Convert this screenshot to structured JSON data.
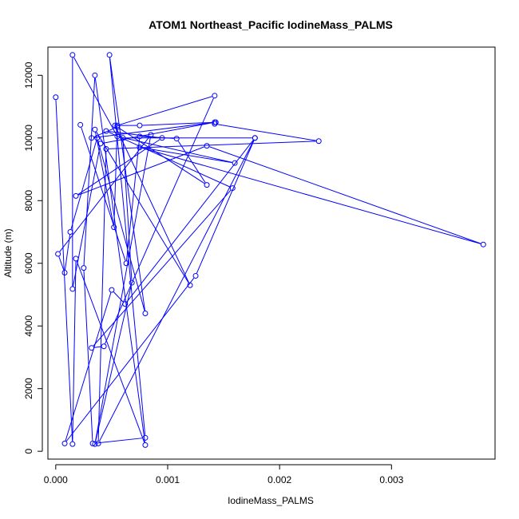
{
  "chart_data": {
    "type": "line",
    "title": "ATOM1 Northeast_Pacific IodineMass_PALMS",
    "xlabel": "IodineMass_PALMS",
    "ylabel": "Altitude (m)",
    "xlim": [
      -7e-05,
      0.003925
    ],
    "ylim": [
      -250,
      12900
    ],
    "xticks": [
      0.0,
      0.001,
      0.002,
      0.003
    ],
    "xtick_labels": [
      "0.000",
      "0.001",
      "0.002",
      "0.003"
    ],
    "yticks": [
      0,
      2000,
      4000,
      6000,
      8000,
      10000,
      12000
    ],
    "ytick_labels": [
      "0",
      "2000",
      "4000",
      "6000",
      "8000",
      "10000",
      "12000"
    ],
    "grid": false,
    "marker": "open-circle",
    "line_color": "#0000ff",
    "series": [
      {
        "x": [
          0.0,
          0.00015,
          0.00018,
          0.0008,
          0.00035,
          0.00025,
          0.00033,
          0.0008,
          0.00048,
          0.0008,
          0.00037,
          0.00013,
          8e-05,
          2e-05,
          0.00085,
          0.00035,
          0.00068,
          0.0006,
          0.00178,
          0.00125,
          8e-05,
          0.0005,
          0.00062,
          0.00178,
          0.00038,
          0.00045,
          0.00235,
          0.00142,
          0.00143,
          0.00075,
          0.00053,
          0.0012,
          0.00035,
          0.00052,
          0.00055,
          0.00142,
          0.00043,
          0.00032,
          0.00158,
          0.00045,
          0.00095,
          0.00018,
          0.00135,
          0.00382,
          0.00075,
          0.0016,
          0.00055,
          0.00015,
          0.00015,
          0.0004,
          0.00142,
          0.00032,
          0.00055,
          0.00135,
          0.00108,
          0.00075,
          0.00063,
          0.00022
        ],
        "y": [
          11300,
          230,
          6150,
          200,
          12000,
          5850,
          250,
          430,
          12650,
          4400,
          10000,
          7000,
          5700,
          6300,
          10100,
          230,
          5380,
          10000,
          10000,
          5600,
          250,
          5150,
          4700,
          10000,
          250,
          9650,
          9900,
          10450,
          10500,
          10400,
          10400,
          5300,
          10270,
          7150,
          10400,
          11350,
          3350,
          3300,
          8400,
          10220,
          10000,
          8150,
          9750,
          6600,
          9700,
          9200,
          10050,
          12650,
          5180,
          9820,
          10500,
          10000,
          10350,
          8500,
          9980,
          10050,
          6000,
          10420
        ]
      }
    ]
  }
}
